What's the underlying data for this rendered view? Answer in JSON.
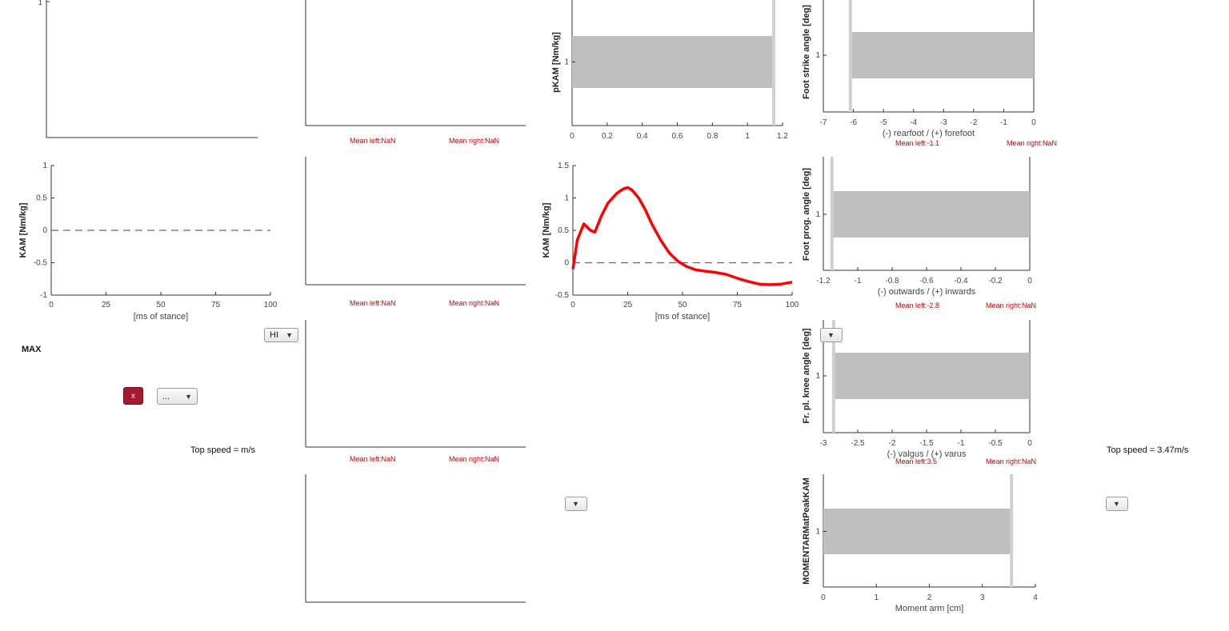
{
  "controls": {
    "dropdown_hi": "HI",
    "dropdown_dots": "...",
    "dropdown_arrow": "▼",
    "x_button": "x",
    "max_label": "MAX",
    "top_speed_left": "Top speed = m/s",
    "top_speed_right": "Top speed = 3.47m/s"
  },
  "means": {
    "p1_left": "Mean left:NaN",
    "p1_right": "Mean right:NaN",
    "p2_left": "Mean left:NaN",
    "p2_right": "Mean right:NaN",
    "p3_left": "Mean left:NaN",
    "p3_right": "Mean right:NaN",
    "foot_strike_left": "Mean left:-1.1",
    "foot_strike_right": "Mean right:NaN",
    "foot_prog_left": "Mean left:-2.8",
    "foot_prog_right": "Mean right:NaN",
    "knee_left": "Mean left:3.5",
    "knee_right": "Mean right:NaN"
  },
  "chart_data": [
    {
      "id": "kam_left",
      "type": "line",
      "ylabel": "KAM [Nm/kg]",
      "xlabel": "[ms of stance]",
      "xlim": [
        0,
        100
      ],
      "ylim": [
        -1,
        1
      ],
      "xticks": [
        0,
        25,
        50,
        75,
        100
      ],
      "yticks": [
        -1,
        -0.5,
        0,
        0.5,
        1
      ],
      "reference_line": 0,
      "series": []
    },
    {
      "id": "kam_right",
      "type": "line",
      "ylabel": "KAM [Nm/kg]",
      "xlabel": "[ms of stance]",
      "xlim": [
        0,
        100
      ],
      "ylim": [
        -0.5,
        1.5
      ],
      "xticks": [
        0,
        25,
        50,
        75,
        100
      ],
      "yticks": [
        -0.5,
        0,
        0.5,
        1,
        1.5
      ],
      "reference_line": 0,
      "line_color": "#ff0000",
      "series": [
        {
          "x": [
            0,
            2,
            5,
            8,
            10,
            13,
            16,
            20,
            23,
            25,
            27,
            30,
            33,
            36,
            40,
            44,
            48,
            52,
            56,
            60,
            65,
            70,
            75,
            80,
            85,
            90,
            95,
            100
          ],
          "y": [
            -0.1,
            0.35,
            0.6,
            0.5,
            0.47,
            0.72,
            0.92,
            1.07,
            1.14,
            1.16,
            1.12,
            1.0,
            0.82,
            0.6,
            0.35,
            0.15,
            0.02,
            -0.06,
            -0.11,
            -0.13,
            -0.15,
            -0.18,
            -0.24,
            -0.29,
            -0.33,
            -0.34,
            -0.33,
            -0.3
          ]
        }
      ]
    },
    {
      "id": "pkam",
      "type": "bar",
      "ylabel": "pKAM [Nm/kg]",
      "xlim": [
        0,
        1.2
      ],
      "xticks": [
        0,
        0.2,
        0.4,
        0.6,
        0.8,
        1,
        1.2
      ],
      "ytick": "1",
      "bar_value": 1.15,
      "marker_value": 1.15
    },
    {
      "id": "foot_strike",
      "type": "bar",
      "ylabel": "Foot strike angle [deg]",
      "xlabel": "(-) rearfoot / (+) forefoot",
      "xlim": [
        -7,
        0
      ],
      "xticks": [
        -7,
        -6,
        -5,
        -4,
        -3,
        -2,
        -1,
        0
      ],
      "ytick": "1",
      "bar_value": -6.1,
      "marker_value": -6.1
    },
    {
      "id": "foot_prog",
      "type": "bar",
      "ylabel": "Foot prog. angle [deg]",
      "xlabel": "(-) outwards / (+) inwards",
      "xlim": [
        -1.2,
        0
      ],
      "xticks": [
        -1.2,
        -1,
        -0.8,
        -0.6,
        -0.4,
        -0.2,
        0
      ],
      "ytick": "1",
      "bar_value": -1.15,
      "marker_value": -1.15
    },
    {
      "id": "knee_angle",
      "type": "bar",
      "ylabel": "Fr. pl. knee angle [deg]",
      "xlabel": "(-) valgus / (+) varus",
      "xlim": [
        -3,
        0
      ],
      "xticks": [
        -3,
        -2.5,
        -2,
        -1.5,
        -1,
        -0.5,
        0
      ],
      "ytick": "1",
      "bar_value": -2.85,
      "marker_value": -2.85
    },
    {
      "id": "moment_arm",
      "type": "bar",
      "ylabel": "MOMENTARMatPeakKAM",
      "xlabel": "Moment arm [cm]",
      "xlim": [
        0,
        4
      ],
      "xticks": [
        0,
        1,
        2,
        3,
        4
      ],
      "ytick": "1",
      "bar_value": 3.55,
      "marker_value": 3.55
    },
    {
      "id": "top_left",
      "type": "line",
      "ytick": "1",
      "series": []
    }
  ]
}
